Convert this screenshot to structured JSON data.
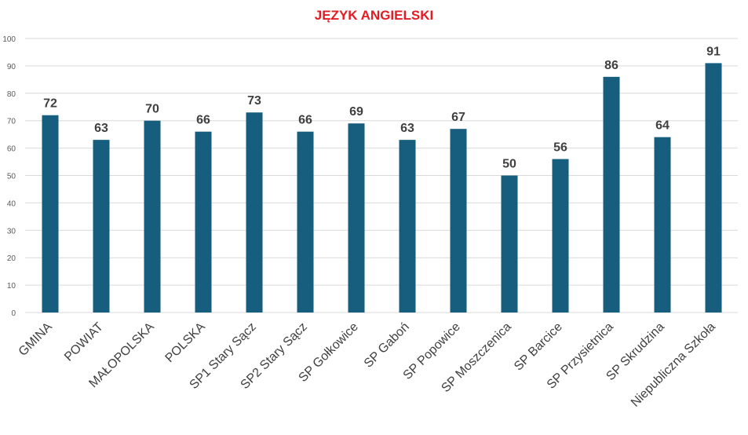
{
  "chart_data": {
    "type": "bar",
    "title": "JĘZYK ANGIELSKI",
    "categories": [
      "GMINA",
      "POWIAT",
      "MAŁOPOLSKA",
      "POLSKA",
      "SP1 Stary Sącz",
      "SP2 Stary Sącz",
      "SP Gołkowice",
      "SP Gaboń",
      "SP Popowice",
      "SP Moszczenica",
      "SP Barcice",
      "SP Przysietnica",
      "SP Skrudzina",
      "Niepubliczna Szkoła"
    ],
    "values": [
      72,
      63,
      70,
      66,
      73,
      66,
      69,
      63,
      67,
      50,
      56,
      86,
      64,
      91
    ],
    "ylim": [
      0,
      100
    ],
    "yticks": [
      0,
      10,
      20,
      30,
      40,
      50,
      60,
      70,
      80,
      90,
      100
    ],
    "grid": true,
    "colors": {
      "bar": "#175e7e",
      "title": "#e31c23",
      "grid": "#d9d9d9"
    }
  }
}
